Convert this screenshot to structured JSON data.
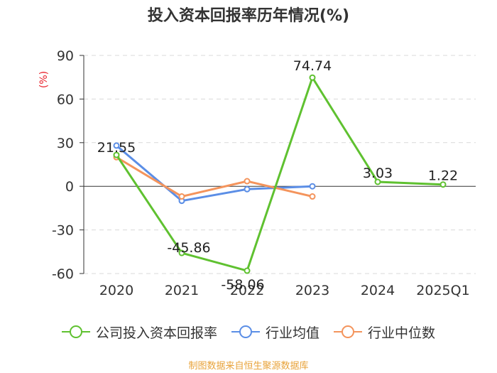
{
  "chart_data": {
    "type": "line",
    "title": "投入资本回报率历年情况(%)",
    "ylabel": "(%)",
    "categories": [
      "2020",
      "2021",
      "2022",
      "2023",
      "2024",
      "2025Q1"
    ],
    "ylim": [
      -60,
      90
    ],
    "yticks": [
      90,
      60,
      30,
      0,
      -30,
      -60
    ],
    "grid": true,
    "legend_position": "bottom",
    "series": [
      {
        "name": "公司投入资本回报率",
        "color": "#5fc130",
        "values": [
          21.55,
          -45.86,
          -58.06,
          74.74,
          3.03,
          1.22
        ],
        "labels": [
          "21.55",
          "-45.86",
          "-58.06",
          "74.74",
          "3.03",
          "1.22"
        ]
      },
      {
        "name": "行业均值",
        "color": "#5b8ee6",
        "values": [
          28,
          -10,
          -2,
          0,
          null,
          null
        ]
      },
      {
        "name": "行业中位数",
        "color": "#f4945c",
        "values": [
          20,
          -7,
          3.5,
          -7,
          null,
          null
        ]
      }
    ]
  },
  "source_text": "制图数据来自恒生聚源数据库"
}
